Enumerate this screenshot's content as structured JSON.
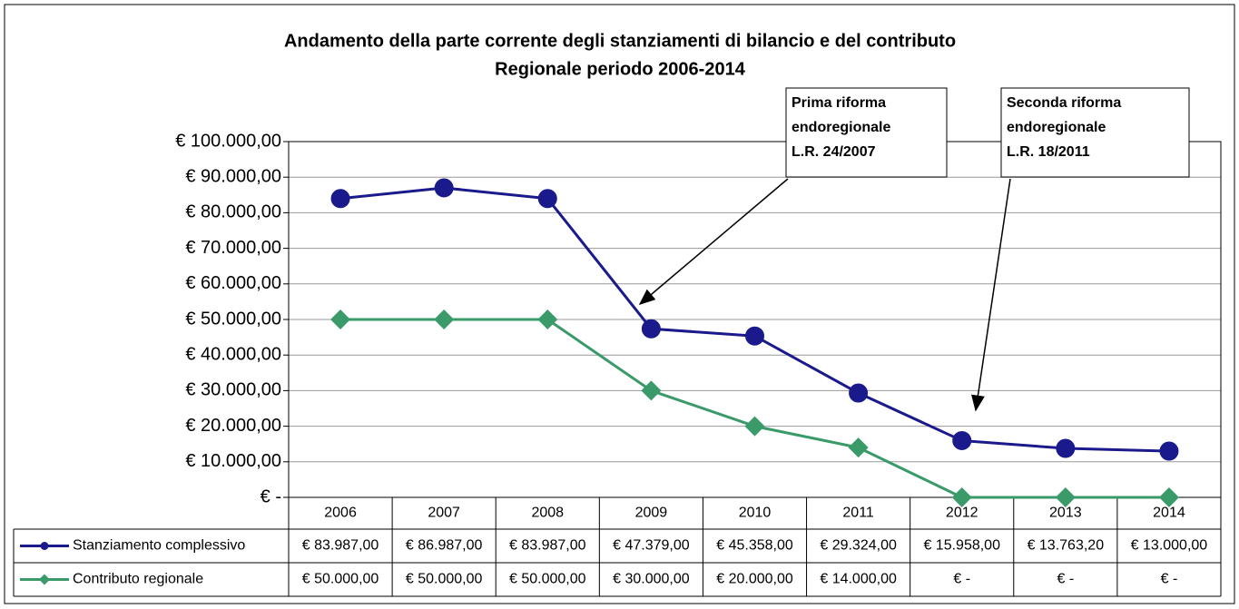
{
  "chart_data": {
    "type": "line",
    "title": [
      "Andamento della parte corrente degli stanziamenti di bilancio e del contributo",
      "Regionale periodo 2006-2014"
    ],
    "categories": [
      "2006",
      "2007",
      "2008",
      "2009",
      "2010",
      "2011",
      "2012",
      "2013",
      "2014"
    ],
    "series": [
      {
        "name": "Stanziamento complessivo",
        "color": "#1a1a8c",
        "marker": "circle",
        "values": [
          83987,
          86987,
          83987,
          47379,
          45358,
          29324,
          15958,
          13763.2,
          13000
        ],
        "value_labels": [
          "€ 83.987,00",
          "€ 86.987,00",
          "€ 83.987,00",
          "€ 47.379,00",
          "€ 45.358,00",
          "€ 29.324,00",
          "€ 15.958,00",
          "€ 13.763,20",
          "€ 13.000,00"
        ]
      },
      {
        "name": "Contributo regionale",
        "color": "#3a9a6a",
        "marker": "diamond",
        "values": [
          50000,
          50000,
          50000,
          30000,
          20000,
          14000,
          0,
          0,
          0
        ],
        "value_labels": [
          "€ 50.000,00",
          "€ 50.000,00",
          "€ 50.000,00",
          "€ 30.000,00",
          "€ 20.000,00",
          "€ 14.000,00",
          "€ -",
          "€ -",
          "€ -"
        ]
      }
    ],
    "ylim": [
      0,
      100000
    ],
    "yticks": [
      {
        "value": 0,
        "label": "€ -"
      },
      {
        "value": 10000,
        "label": "€ 10.000,00"
      },
      {
        "value": 20000,
        "label": "€ 20.000,00"
      },
      {
        "value": 30000,
        "label": "€ 30.000,00"
      },
      {
        "value": 40000,
        "label": "€ 40.000,00"
      },
      {
        "value": 50000,
        "label": "€ 50.000,00"
      },
      {
        "value": 60000,
        "label": "€ 60.000,00"
      },
      {
        "value": 70000,
        "label": "€ 70.000,00"
      },
      {
        "value": 80000,
        "label": "€ 80.000,00"
      },
      {
        "value": 90000,
        "label": "€ 90.000,00"
      },
      {
        "value": 100000,
        "label": "€ 100.000,00"
      }
    ],
    "grid": true,
    "annotations": [
      [
        "Prima riforma",
        "endoregionale",
        "L.R. 24/2007"
      ],
      [
        "Seconda riforma",
        "endoregionale",
        "L.R. 18/2011"
      ]
    ]
  }
}
